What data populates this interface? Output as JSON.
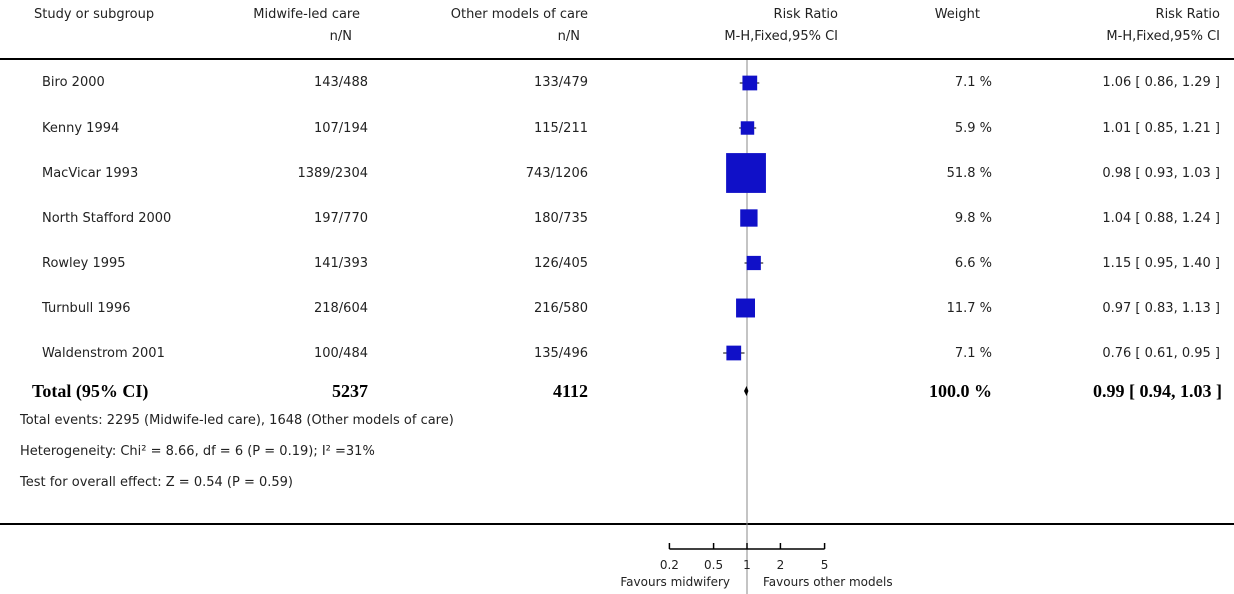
{
  "header": {
    "study": "Study or subgroup",
    "group1": "Midwife-led care",
    "group1_sub": "n/N",
    "group2": "Other models of care",
    "group2_sub": "n/N",
    "rr": "Risk Ratio",
    "rr_sub": "M-H,Fixed,95% CI",
    "weight": "Weight",
    "rr2": "Risk Ratio",
    "rr2_sub": "M-H,Fixed,95% CI"
  },
  "rows": [
    {
      "study": "Biro 2000",
      "g1": "143/488",
      "g2": "133/479",
      "weight": "7.1 %",
      "ci": "1.06 [ 0.86, 1.29 ]"
    },
    {
      "study": "Kenny 1994",
      "g1": "107/194",
      "g2": "115/211",
      "weight": "5.9 %",
      "ci": "1.01 [ 0.85, 1.21 ]"
    },
    {
      "study": "MacVicar 1993",
      "g1": "1389/2304",
      "g2": "743/1206",
      "weight": "51.8 %",
      "ci": "0.98 [ 0.93, 1.03 ]"
    },
    {
      "study": "North Stafford 2000",
      "g1": "197/770",
      "g2": "180/735",
      "weight": "9.8 %",
      "ci": "1.04 [ 0.88, 1.24 ]"
    },
    {
      "study": "Rowley 1995",
      "g1": "141/393",
      "g2": "126/405",
      "weight": "6.6 %",
      "ci": "1.15 [ 0.95, 1.40 ]"
    },
    {
      "study": "Turnbull 1996",
      "g1": "218/604",
      "g2": "216/580",
      "weight": "11.7 %",
      "ci": "0.97 [ 0.83, 1.13 ]"
    },
    {
      "study": "Waldenstrom 2001",
      "g1": "100/484",
      "g2": "135/496",
      "weight": "7.1 %",
      "ci": "0.76 [ 0.61, 0.95 ]"
    }
  ],
  "total": {
    "label": "Total (95% CI)",
    "g1": "5237",
    "g2": "4112",
    "weight": "100.0 %",
    "ci": "0.99 [ 0.94, 1.03 ]"
  },
  "footer": {
    "events": "Total events: 2295 (Midwife-led care), 1648 (Other models of care)",
    "heterogeneity": "Heterogeneity: Chi² = 8.66, df = 6 (P = 0.19); I² =31%",
    "overall": "Test for overall effect: Z = 0.54 (P = 0.59)"
  },
  "axis": {
    "favours_left": "Favours midwifery",
    "favours_right": "Favours other models"
  },
  "colors": {
    "marker": "#1010c8",
    "line": "#000000",
    "ref": "#888888"
  },
  "chart_data": {
    "type": "forest",
    "scale": "log",
    "xlim": [
      0.2,
      5
    ],
    "ticks": [
      0.2,
      0.5,
      1,
      2,
      5
    ],
    "tick_labels": [
      "0.2",
      "0.5",
      "1",
      "2",
      "5"
    ],
    "studies": [
      {
        "name": "Biro 2000",
        "rr": 1.06,
        "lo": 0.86,
        "hi": 1.29,
        "weight": 7.1
      },
      {
        "name": "Kenny 1994",
        "rr": 1.01,
        "lo": 0.85,
        "hi": 1.21,
        "weight": 5.9
      },
      {
        "name": "MacVicar 1993",
        "rr": 0.98,
        "lo": 0.93,
        "hi": 1.03,
        "weight": 51.8
      },
      {
        "name": "North Stafford 2000",
        "rr": 1.04,
        "lo": 0.88,
        "hi": 1.24,
        "weight": 9.8
      },
      {
        "name": "Rowley 1995",
        "rr": 1.15,
        "lo": 0.95,
        "hi": 1.4,
        "weight": 6.6
      },
      {
        "name": "Turnbull 1996",
        "rr": 0.97,
        "lo": 0.83,
        "hi": 1.13,
        "weight": 11.7
      },
      {
        "name": "Waldenstrom 2001",
        "rr": 0.76,
        "lo": 0.61,
        "hi": 0.95,
        "weight": 7.1
      }
    ],
    "total": {
      "rr": 0.99,
      "lo": 0.94,
      "hi": 1.03
    }
  }
}
